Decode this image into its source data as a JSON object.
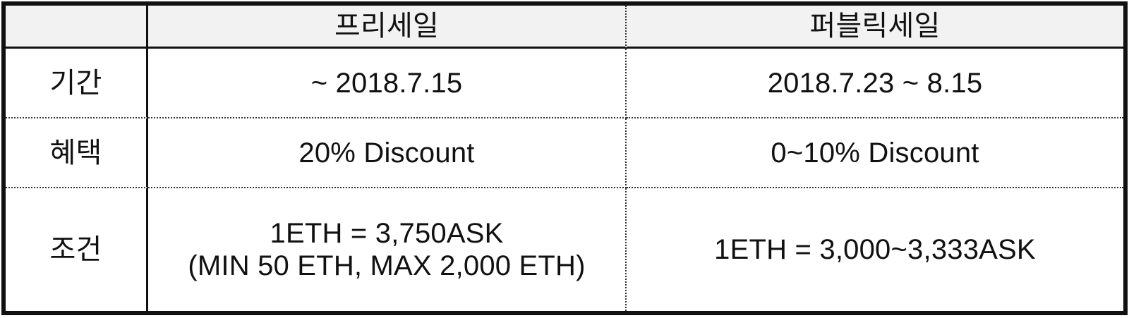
{
  "table": {
    "header": {
      "corner": "",
      "col_presale": "프리세일",
      "col_publicsale": "퍼블릭세일"
    },
    "rows": [
      {
        "label": "기간",
        "presale": "~ 2018.7.15",
        "publicsale": "2018.7.23 ~ 8.15"
      },
      {
        "label": "혜택",
        "presale": "20% Discount",
        "publicsale": "0~10% Discount"
      },
      {
        "label": "조건",
        "presale_line1": "1ETH = 3,750ASK",
        "presale_line2": "(MIN 50 ETH, MAX 2,000 ETH)",
        "publicsale": "1ETH = 3,000~3,333ASK"
      }
    ]
  }
}
